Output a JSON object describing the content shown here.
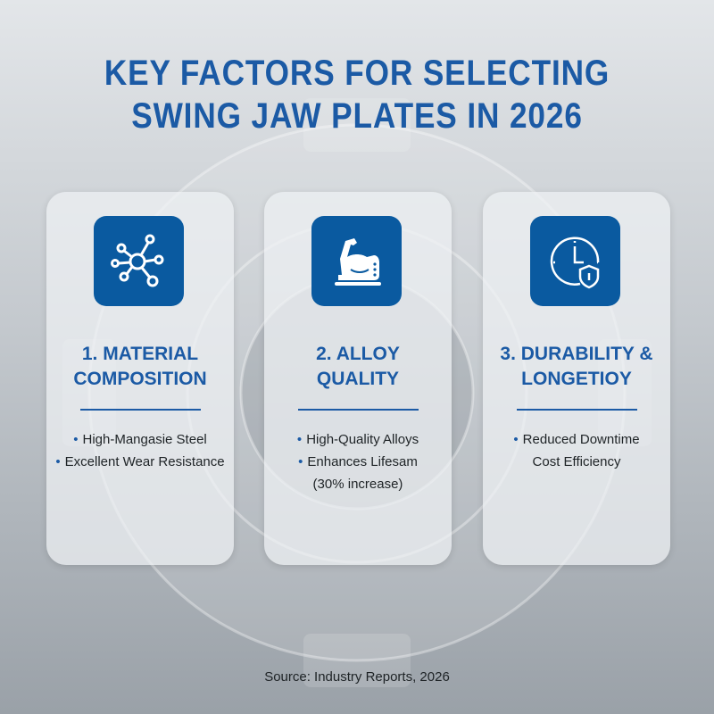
{
  "title": {
    "line1": "KEY FACTORS FOR SELECTING",
    "line2": "SWING JAW PLATES IN 2026"
  },
  "colors": {
    "accent": "#1b5aa5",
    "icon_bg": "#0a5aa0"
  },
  "cards": [
    {
      "icon": "network-molecule-icon",
      "heading_line1": "1. MATERIAL",
      "heading_line2": "COMPOSITION",
      "bullets": [
        {
          "text": "High-Mangasie Steel",
          "dot": "•"
        },
        {
          "text": "Excellent Wear Resistance",
          "dot": "•"
        }
      ]
    },
    {
      "icon": "flexed-arm-icon",
      "heading_line1": "2. ALLOY",
      "heading_line2": "QUALITY",
      "bullets": [
        {
          "text": "High-Quality Alloys",
          "dot": "•"
        },
        {
          "text": "Enhances Lifesam",
          "dot": "•"
        },
        {
          "text": "(30% increase)",
          "dot": ""
        }
      ]
    },
    {
      "icon": "clock-shield-icon",
      "heading_line1": "3. DURABILITY &",
      "heading_line2": "LONGETIOY",
      "bullets": [
        {
          "text": "Reduced Downtime",
          "dot": "•"
        },
        {
          "text": "Cost Efficiency",
          "dot": ""
        }
      ]
    }
  ],
  "source": "Source: Industry Reports, 2026"
}
